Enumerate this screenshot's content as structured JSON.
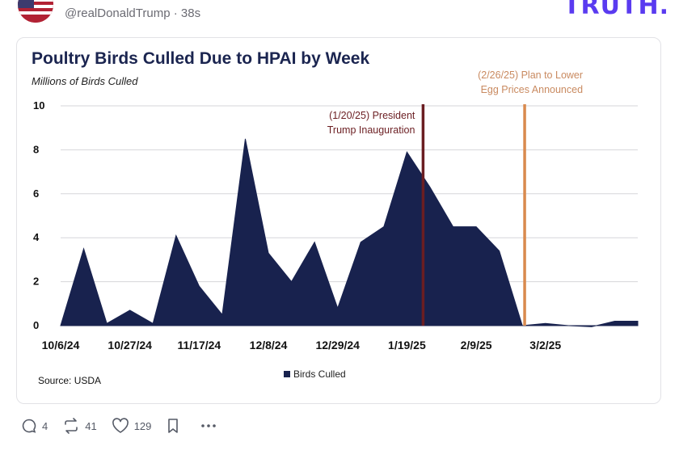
{
  "post": {
    "handle": "@realDonaldTrump",
    "time": "38s",
    "separator": "·",
    "brand": "TRUTH."
  },
  "actions": {
    "replies": "4",
    "retruths": "41",
    "likes": "129"
  },
  "colors": {
    "area": "#18224e",
    "title": "#1b2550",
    "inauguration_line": "#6b1e22",
    "plan_line": "#d98a4e",
    "brand": "#5a3bf0"
  },
  "chart_data": {
    "type": "area",
    "title": "Poultry Birds Culled Due to HPAI by Week",
    "ylabel": "Millions of Birds Culled",
    "source": "Source: USDA",
    "legend_label": "Birds Culled",
    "ylim": [
      0,
      10
    ],
    "yticks": [
      0,
      2,
      4,
      6,
      8,
      10
    ],
    "xlim": [
      0,
      25
    ],
    "xtick_labels": [
      "10/6/24",
      "10/27/24",
      "11/17/24",
      "12/8/24",
      "12/29/24",
      "1/19/25",
      "2/9/25",
      "3/2/25"
    ],
    "xtick_positions": [
      0,
      3,
      6,
      9,
      12,
      15,
      18,
      21
    ],
    "series": [
      {
        "name": "Birds Culled",
        "x": [
          0,
          1,
          2,
          3,
          4,
          5,
          6,
          7,
          8,
          9,
          10,
          11,
          12,
          13,
          14,
          15,
          16,
          17,
          18,
          19,
          20,
          21,
          22,
          23,
          24,
          25
        ],
        "values": [
          0,
          3.5,
          0.1,
          0.7,
          0.1,
          4.1,
          1.8,
          0.5,
          8.5,
          3.3,
          2.0,
          3.8,
          0.8,
          3.8,
          4.5,
          7.9,
          6.3,
          4.5,
          4.5,
          3.4,
          0.0,
          0.1,
          0.0,
          -0.05,
          0.2,
          0.2
        ]
      }
    ],
    "annotations": [
      {
        "x": 15.7,
        "label_lines": [
          "(1/20/25) President",
          "Trump Inauguration"
        ]
      },
      {
        "x": 20.1,
        "label_lines": [
          "(2/26/25) Plan to Lower",
          "Egg Prices Announced"
        ]
      }
    ]
  }
}
